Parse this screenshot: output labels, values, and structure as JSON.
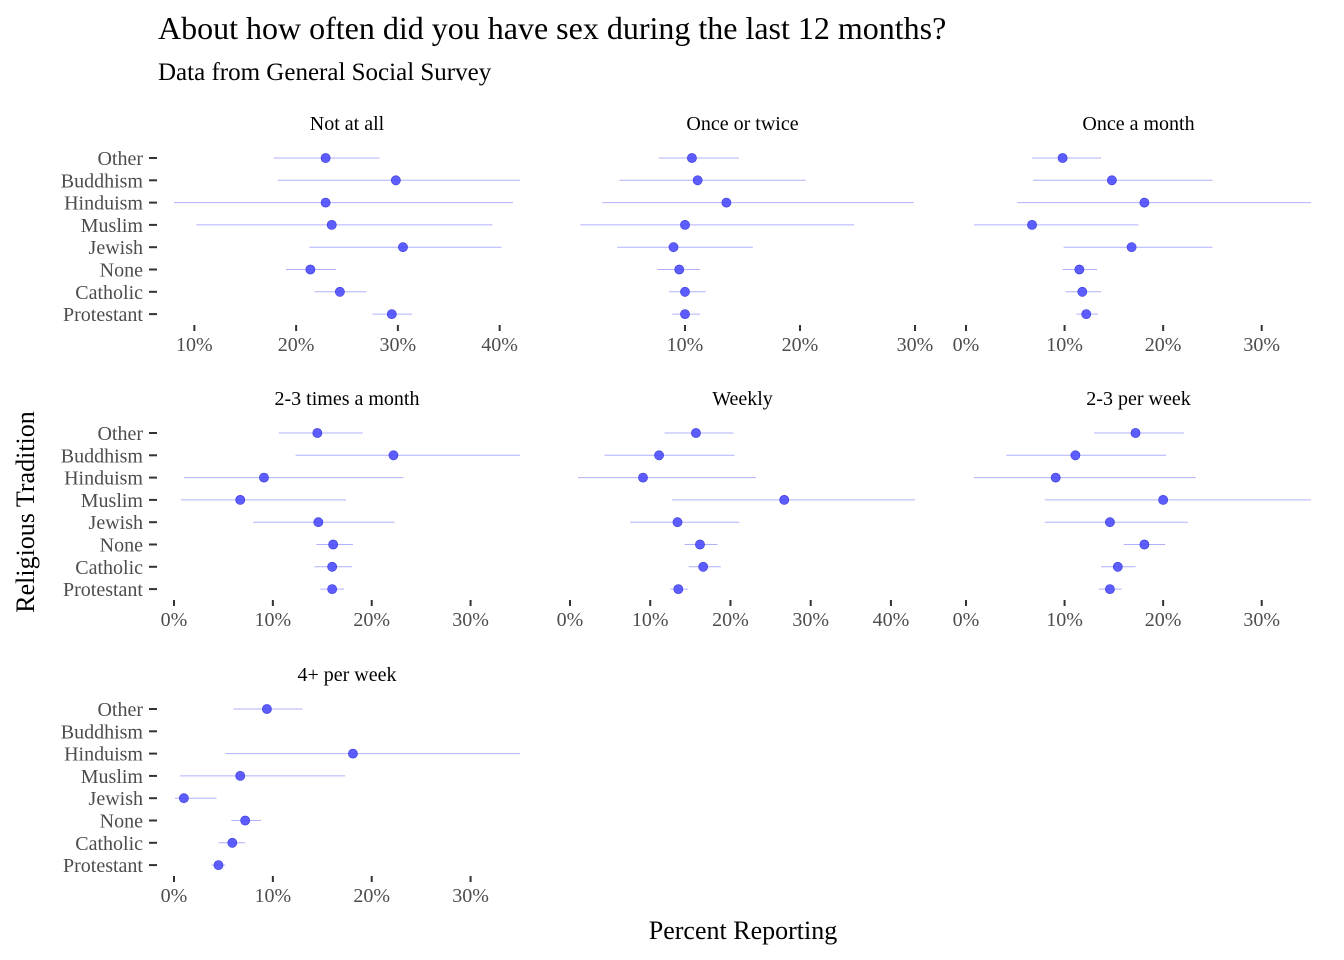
{
  "chart_data": {
    "type": "scatter",
    "title": "About how often did you have sex during the last 12 months?",
    "subtitle": "Data from General Social Survey",
    "xlabel": "Percent Reporting",
    "ylabel": "Religious Tradition",
    "categories": [
      "Other",
      "Buddhism",
      "Hinduism",
      "Muslim",
      "Jewish",
      "None",
      "Catholic",
      "Protestant"
    ],
    "colors": {
      "point": "#4c4cff",
      "interval": "#b0b0ff",
      "axis_text": "#4d4d4d"
    },
    "grid": false,
    "panels": [
      {
        "name": "Not at all",
        "xlim": [
          8,
          42
        ],
        "xticks": [
          10,
          20,
          30,
          40
        ],
        "xticklabels": [
          "10%",
          "20%",
          "30%",
          "40%"
        ],
        "estimate": [
          22.9,
          29.8,
          22.9,
          23.5,
          30.5,
          21.4,
          24.3,
          29.4
        ],
        "low": [
          17.8,
          18.2,
          8.0,
          10.2,
          21.3,
          19.0,
          21.8,
          27.5
        ],
        "high": [
          28.2,
          42.0,
          41.3,
          39.3,
          40.2,
          23.9,
          26.9,
          31.4
        ]
      },
      {
        "name": "Once or twice",
        "xlim": [
          0,
          30
        ],
        "xticks": [
          10,
          20,
          30
        ],
        "xticklabels": [
          "10%",
          "20%",
          "30%"
        ],
        "estimate": [
          10.6,
          11.1,
          13.6,
          10.0,
          9.0,
          9.5,
          10.0,
          10.0
        ],
        "low": [
          7.7,
          4.3,
          2.8,
          0.9,
          4.1,
          7.6,
          8.6,
          8.9
        ],
        "high": [
          14.7,
          20.5,
          29.9,
          24.7,
          15.9,
          11.3,
          11.8,
          11.3
        ]
      },
      {
        "name": "Once a month",
        "xlim": [
          0,
          35
        ],
        "xticks": [
          0,
          10,
          20,
          30
        ],
        "xticklabels": [
          "0%",
          "10%",
          "20%",
          "30%"
        ],
        "estimate": [
          9.8,
          14.8,
          18.1,
          6.7,
          16.8,
          11.5,
          11.8,
          12.2
        ],
        "low": [
          6.7,
          6.8,
          5.2,
          0.8,
          9.9,
          9.8,
          10.1,
          11.2
        ],
        "high": [
          13.7,
          25.0,
          35.0,
          17.5,
          25.0,
          13.3,
          13.7,
          13.4
        ]
      },
      {
        "name": "2-3 times a month",
        "xlim": [
          0,
          35
        ],
        "xticks": [
          0,
          10,
          20,
          30
        ],
        "xticklabels": [
          "0%",
          "10%",
          "20%",
          "30%"
        ],
        "estimate": [
          14.5,
          22.2,
          9.1,
          6.7,
          14.6,
          16.1,
          16.0,
          16.0
        ],
        "low": [
          10.6,
          12.3,
          1.0,
          0.7,
          8.0,
          14.4,
          14.2,
          14.8
        ],
        "high": [
          19.1,
          35.0,
          23.2,
          17.4,
          22.3,
          18.1,
          18.0,
          17.2
        ]
      },
      {
        "name": "Weekly",
        "xlim": [
          0,
          43
        ],
        "xticks": [
          0,
          10,
          20,
          30,
          40
        ],
        "xticklabels": [
          "0%",
          "10%",
          "20%",
          "30%",
          "40%"
        ],
        "estimate": [
          15.7,
          11.1,
          9.1,
          26.7,
          13.4,
          16.2,
          16.6,
          13.5
        ],
        "low": [
          11.8,
          4.3,
          1.0,
          12.7,
          7.5,
          14.3,
          14.8,
          12.5
        ],
        "high": [
          20.4,
          20.5,
          23.2,
          43.0,
          21.1,
          18.4,
          18.8,
          14.7
        ]
      },
      {
        "name": "2-3 per week",
        "xlim": [
          0,
          35
        ],
        "xticks": [
          0,
          10,
          20,
          30
        ],
        "xticklabels": [
          "0%",
          "10%",
          "20%",
          "30%"
        ],
        "estimate": [
          17.2,
          11.1,
          9.1,
          20.0,
          14.6,
          18.1,
          15.4,
          14.6
        ],
        "low": [
          13.0,
          4.1,
          0.8,
          8.0,
          8.0,
          16.0,
          13.7,
          13.5
        ],
        "high": [
          22.1,
          20.3,
          23.3,
          35.0,
          22.5,
          20.2,
          17.2,
          15.8
        ]
      },
      {
        "name": "4+ per week",
        "xlim": [
          0,
          35
        ],
        "xticks": [
          0,
          10,
          20,
          30
        ],
        "xticklabels": [
          "0%",
          "10%",
          "20%",
          "30%"
        ],
        "estimate": [
          9.4,
          null,
          18.1,
          6.7,
          1.0,
          7.2,
          5.9,
          4.5
        ],
        "low": [
          6.0,
          null,
          5.2,
          0.6,
          0.1,
          5.8,
          4.5,
          3.8
        ],
        "high": [
          13.0,
          null,
          35.0,
          17.3,
          4.3,
          8.8,
          7.2,
          5.2
        ]
      }
    ]
  }
}
